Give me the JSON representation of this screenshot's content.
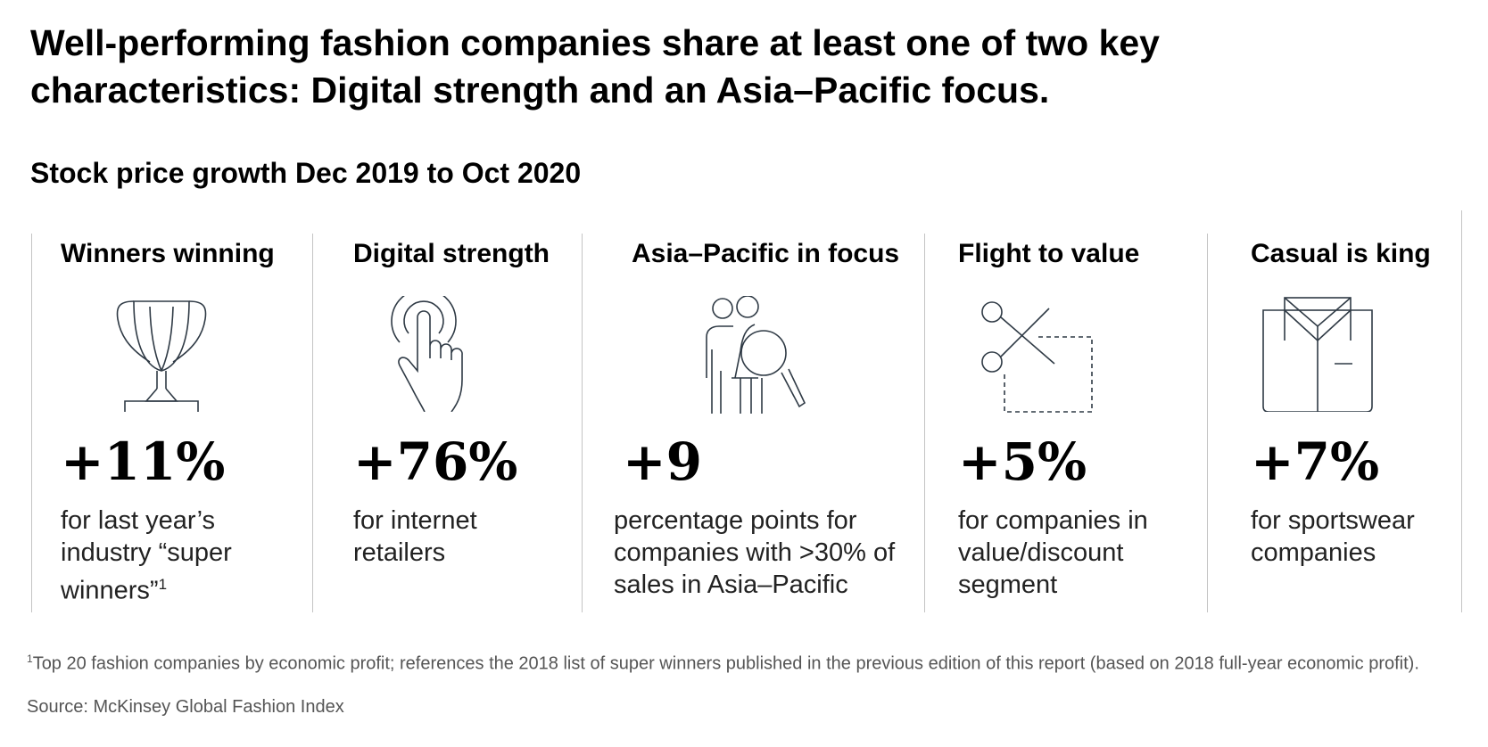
{
  "title": "Well-performing fashion companies share at least one of two key characteristics: Digital strength and an Asia–Pacific focus.",
  "subtitle": "Stock price growth Dec 2019 to Oct 2020",
  "panels": [
    {
      "heading": "Winners winning",
      "value": "+11%",
      "description": "for last year’s industry “super winners”",
      "footnote_marker": "1",
      "icon": "trophy-icon"
    },
    {
      "heading": "Digital strength",
      "value": "+76%",
      "description": "for internet retailers",
      "icon": "tap-hand-icon"
    },
    {
      "heading": "Asia–Pacific in focus",
      "value": "+9",
      "description": "percentage points for companies with >30% of sales in Asia–Pacific",
      "icon": "people-magnifier-icon"
    },
    {
      "heading": "Flight to value",
      "value": "+5%",
      "description": "for companies in value/discount segment",
      "icon": "scissors-coupon-icon"
    },
    {
      "heading": "Casual is king",
      "value": "+7%",
      "description": "for sportswear companies",
      "icon": "shirt-icon"
    }
  ],
  "footnote": {
    "marker": "1",
    "text": "Top 20 fashion companies by economic profit; references the 2018 list of super winners published in the previous edition of this report (based on 2018 full-year economic profit)."
  },
  "source": "Source: McKinsey Global Fashion Index"
}
